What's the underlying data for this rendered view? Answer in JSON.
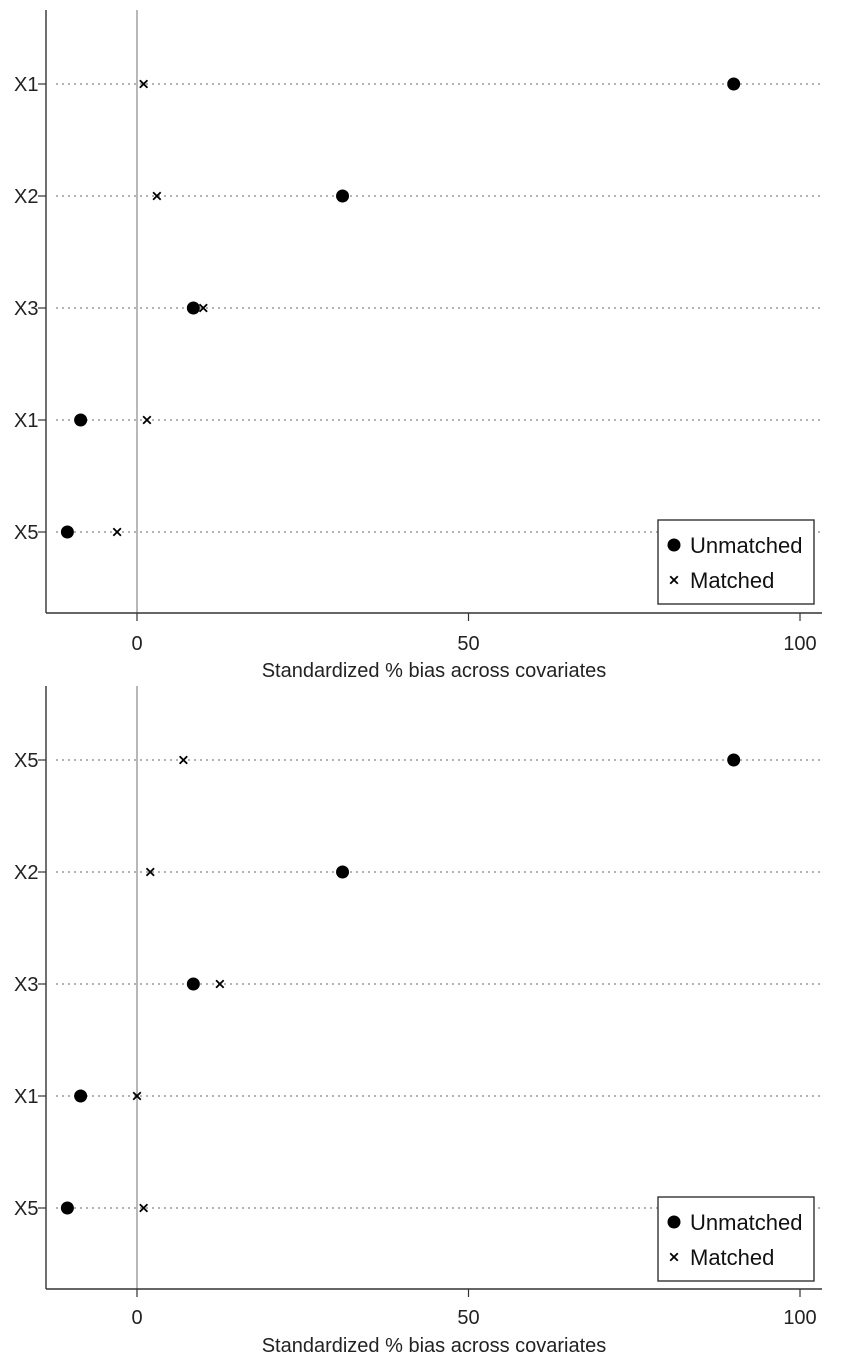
{
  "chart_data": [
    {
      "type": "scatter",
      "title": "",
      "xlabel": "Standardized % bias across covariates",
      "ylabel": "",
      "xlim": [
        -14,
        103
      ],
      "x_ticks": [
        0,
        50,
        100
      ],
      "categories": [
        "X1",
        "X2",
        "X3",
        "X1",
        "X5"
      ],
      "grid": "dotted horizontal",
      "legend_position": "bottom-right",
      "series": [
        {
          "name": "Unmatched",
          "marker": "circle",
          "values": [
            90,
            31,
            8.5,
            -8.5,
            -10.5
          ]
        },
        {
          "name": "Matched",
          "marker": "x",
          "values": [
            1,
            3,
            10,
            1.5,
            -3
          ]
        }
      ]
    },
    {
      "type": "scatter",
      "title": "",
      "xlabel": "Standardized % bias across covariates",
      "ylabel": "",
      "xlim": [
        -14,
        103
      ],
      "x_ticks": [
        0,
        50,
        100
      ],
      "categories": [
        "X5",
        "X2",
        "X3",
        "X1",
        "X5"
      ],
      "grid": "dotted horizontal",
      "legend_position": "bottom-right",
      "series": [
        {
          "name": "Unmatched",
          "marker": "circle",
          "values": [
            90,
            31,
            8.5,
            -8.5,
            -10.5
          ]
        },
        {
          "name": "Matched",
          "marker": "x",
          "values": [
            7,
            2,
            12.5,
            0,
            1
          ]
        }
      ]
    }
  ],
  "colors": {
    "marker": "#000000",
    "grid": "#9a9a9a",
    "axis": "#333333",
    "zero_line": "#888888"
  }
}
